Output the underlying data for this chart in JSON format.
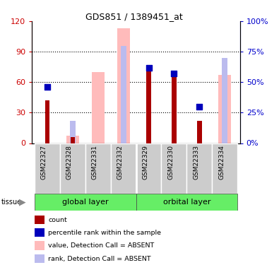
{
  "title": "GDS851 / 1389451_at",
  "samples": [
    "GSM22327",
    "GSM22328",
    "GSM22331",
    "GSM22332",
    "GSM22329",
    "GSM22330",
    "GSM22333",
    "GSM22334"
  ],
  "count_values": [
    42,
    6,
    0,
    0,
    75,
    68,
    22,
    0
  ],
  "rank_values": [
    46,
    null,
    null,
    null,
    62,
    57,
    30,
    null
  ],
  "absent_value_values": [
    null,
    7,
    70,
    113,
    null,
    null,
    null,
    67
  ],
  "absent_rank_values": [
    null,
    18,
    null,
    80,
    null,
    null,
    null,
    70
  ],
  "ylim_left": [
    0,
    120
  ],
  "ylim_right": [
    0,
    100
  ],
  "yticks_left": [
    0,
    30,
    60,
    90,
    120
  ],
  "yticks_right": [
    0,
    25,
    50,
    75,
    100
  ],
  "left_axis_color": "#cc0000",
  "right_axis_color": "#0000cc",
  "bar_color_count": "#aa0000",
  "bar_color_rank": "#0000bb",
  "bar_color_absent_value": "#ffbbbb",
  "bar_color_absent_rank": "#bbbbee",
  "group_bg_color": "#66ee66",
  "sample_bg_color": "#cccccc",
  "legend_items": [
    {
      "label": "count",
      "color": "#aa0000"
    },
    {
      "label": "percentile rank within the sample",
      "color": "#0000bb"
    },
    {
      "label": "value, Detection Call = ABSENT",
      "color": "#ffbbbb"
    },
    {
      "label": "rank, Detection Call = ABSENT",
      "color": "#bbbbee"
    }
  ]
}
